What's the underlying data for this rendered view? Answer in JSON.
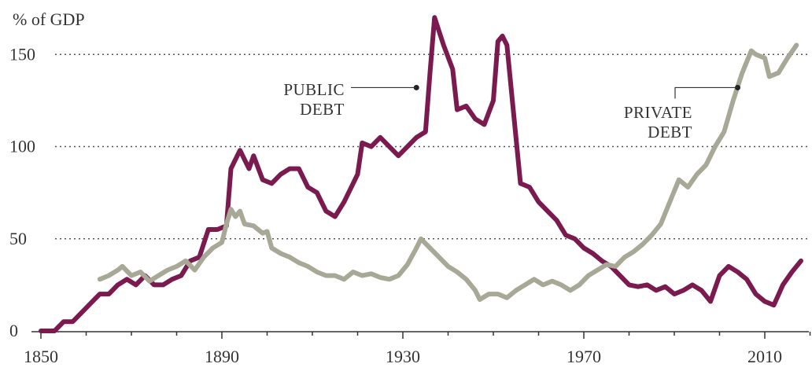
{
  "chart_data": {
    "type": "line",
    "ylabel": "% of GDP",
    "xlim": [
      1850,
      2018
    ],
    "ylim": [
      0,
      170
    ],
    "x_ticks": [
      1850,
      1890,
      1930,
      1970,
      2010
    ],
    "y_ticks": [
      0,
      50,
      100,
      150
    ],
    "y_gridlines": [
      50,
      100,
      150
    ],
    "colors": {
      "public": "#7a1a4e",
      "private": "#a8a896"
    },
    "series": [
      {
        "name": "PUBLIC DEBT",
        "key": "public",
        "points": [
          [
            1850,
            0
          ],
          [
            1853,
            0
          ],
          [
            1855,
            5
          ],
          [
            1857,
            5
          ],
          [
            1859,
            10
          ],
          [
            1861,
            15
          ],
          [
            1863,
            20
          ],
          [
            1865,
            20
          ],
          [
            1867,
            25
          ],
          [
            1869,
            28
          ],
          [
            1871,
            25
          ],
          [
            1873,
            30
          ],
          [
            1875,
            25
          ],
          [
            1877,
            25
          ],
          [
            1879,
            28
          ],
          [
            1881,
            30
          ],
          [
            1883,
            38
          ],
          [
            1885,
            40
          ],
          [
            1887,
            55
          ],
          [
            1889,
            55
          ],
          [
            1891,
            57
          ],
          [
            1892,
            88
          ],
          [
            1894,
            98
          ],
          [
            1896,
            88
          ],
          [
            1897,
            95
          ],
          [
            1899,
            82
          ],
          [
            1901,
            80
          ],
          [
            1903,
            85
          ],
          [
            1905,
            88
          ],
          [
            1907,
            88
          ],
          [
            1909,
            78
          ],
          [
            1911,
            75
          ],
          [
            1913,
            65
          ],
          [
            1915,
            62
          ],
          [
            1917,
            70
          ],
          [
            1919,
            80
          ],
          [
            1920,
            85
          ],
          [
            1921,
            102
          ],
          [
            1923,
            100
          ],
          [
            1925,
            105
          ],
          [
            1927,
            100
          ],
          [
            1929,
            95
          ],
          [
            1931,
            100
          ],
          [
            1933,
            105
          ],
          [
            1935,
            108
          ],
          [
            1936,
            140
          ],
          [
            1937,
            170
          ],
          [
            1939,
            155
          ],
          [
            1941,
            142
          ],
          [
            1942,
            120
          ],
          [
            1944,
            122
          ],
          [
            1946,
            115
          ],
          [
            1948,
            112
          ],
          [
            1950,
            125
          ],
          [
            1951,
            157
          ],
          [
            1952,
            160
          ],
          [
            1953,
            155
          ],
          [
            1954,
            130
          ],
          [
            1956,
            80
          ],
          [
            1958,
            78
          ],
          [
            1960,
            70
          ],
          [
            1962,
            65
          ],
          [
            1964,
            60
          ],
          [
            1966,
            52
          ],
          [
            1968,
            50
          ],
          [
            1970,
            45
          ],
          [
            1972,
            42
          ],
          [
            1974,
            38
          ],
          [
            1976,
            35
          ],
          [
            1978,
            30
          ],
          [
            1980,
            25
          ],
          [
            1982,
            24
          ],
          [
            1984,
            25
          ],
          [
            1986,
            22
          ],
          [
            1988,
            24
          ],
          [
            1990,
            20
          ],
          [
            1992,
            22
          ],
          [
            1994,
            25
          ],
          [
            1996,
            22
          ],
          [
            1998,
            16
          ],
          [
            2000,
            30
          ],
          [
            2002,
            35
          ],
          [
            2004,
            32
          ],
          [
            2006,
            28
          ],
          [
            2008,
            20
          ],
          [
            2010,
            16
          ],
          [
            2012,
            14
          ],
          [
            2014,
            25
          ],
          [
            2016,
            32
          ],
          [
            2018,
            38
          ]
        ]
      },
      {
        "name": "PRIVATE DEBT",
        "key": "private",
        "points": [
          [
            1863,
            28
          ],
          [
            1865,
            30
          ],
          [
            1867,
            33
          ],
          [
            1868,
            35
          ],
          [
            1870,
            30
          ],
          [
            1872,
            32
          ],
          [
            1874,
            27
          ],
          [
            1876,
            30
          ],
          [
            1878,
            33
          ],
          [
            1880,
            35
          ],
          [
            1882,
            38
          ],
          [
            1884,
            33
          ],
          [
            1886,
            40
          ],
          [
            1888,
            45
          ],
          [
            1890,
            48
          ],
          [
            1891,
            58
          ],
          [
            1892,
            66
          ],
          [
            1893,
            62
          ],
          [
            1894,
            65
          ],
          [
            1895,
            58
          ],
          [
            1897,
            57
          ],
          [
            1899,
            53
          ],
          [
            1900,
            54
          ],
          [
            1901,
            45
          ],
          [
            1903,
            42
          ],
          [
            1905,
            40
          ],
          [
            1907,
            37
          ],
          [
            1909,
            35
          ],
          [
            1911,
            32
          ],
          [
            1913,
            30
          ],
          [
            1915,
            30
          ],
          [
            1917,
            28
          ],
          [
            1919,
            32
          ],
          [
            1921,
            30
          ],
          [
            1923,
            31
          ],
          [
            1925,
            29
          ],
          [
            1927,
            28
          ],
          [
            1929,
            30
          ],
          [
            1931,
            36
          ],
          [
            1933,
            45
          ],
          [
            1934,
            50
          ],
          [
            1936,
            45
          ],
          [
            1938,
            40
          ],
          [
            1940,
            35
          ],
          [
            1942,
            32
          ],
          [
            1944,
            28
          ],
          [
            1946,
            22
          ],
          [
            1947,
            17
          ],
          [
            1949,
            20
          ],
          [
            1951,
            20
          ],
          [
            1953,
            18
          ],
          [
            1955,
            22
          ],
          [
            1957,
            25
          ],
          [
            1959,
            28
          ],
          [
            1961,
            25
          ],
          [
            1963,
            27
          ],
          [
            1965,
            25
          ],
          [
            1967,
            22
          ],
          [
            1969,
            25
          ],
          [
            1971,
            30
          ],
          [
            1973,
            33
          ],
          [
            1975,
            36
          ],
          [
            1977,
            35
          ],
          [
            1979,
            40
          ],
          [
            1981,
            43
          ],
          [
            1983,
            47
          ],
          [
            1985,
            52
          ],
          [
            1987,
            58
          ],
          [
            1989,
            70
          ],
          [
            1991,
            82
          ],
          [
            1993,
            78
          ],
          [
            1995,
            85
          ],
          [
            1997,
            90
          ],
          [
            1999,
            100
          ],
          [
            2001,
            108
          ],
          [
            2003,
            125
          ],
          [
            2005,
            140
          ],
          [
            2007,
            152
          ],
          [
            2008,
            150
          ],
          [
            2010,
            148
          ],
          [
            2011,
            138
          ],
          [
            2013,
            140
          ],
          [
            2015,
            148
          ],
          [
            2017,
            155
          ]
        ]
      }
    ],
    "annotations": [
      {
        "series": "public",
        "lines": [
          "PUBLIC",
          "DEBT"
        ],
        "at": [
          1933,
          132
        ]
      },
      {
        "series": "private",
        "lines": [
          "PRIVATE",
          "DEBT"
        ],
        "at": [
          2004,
          132
        ]
      }
    ]
  }
}
